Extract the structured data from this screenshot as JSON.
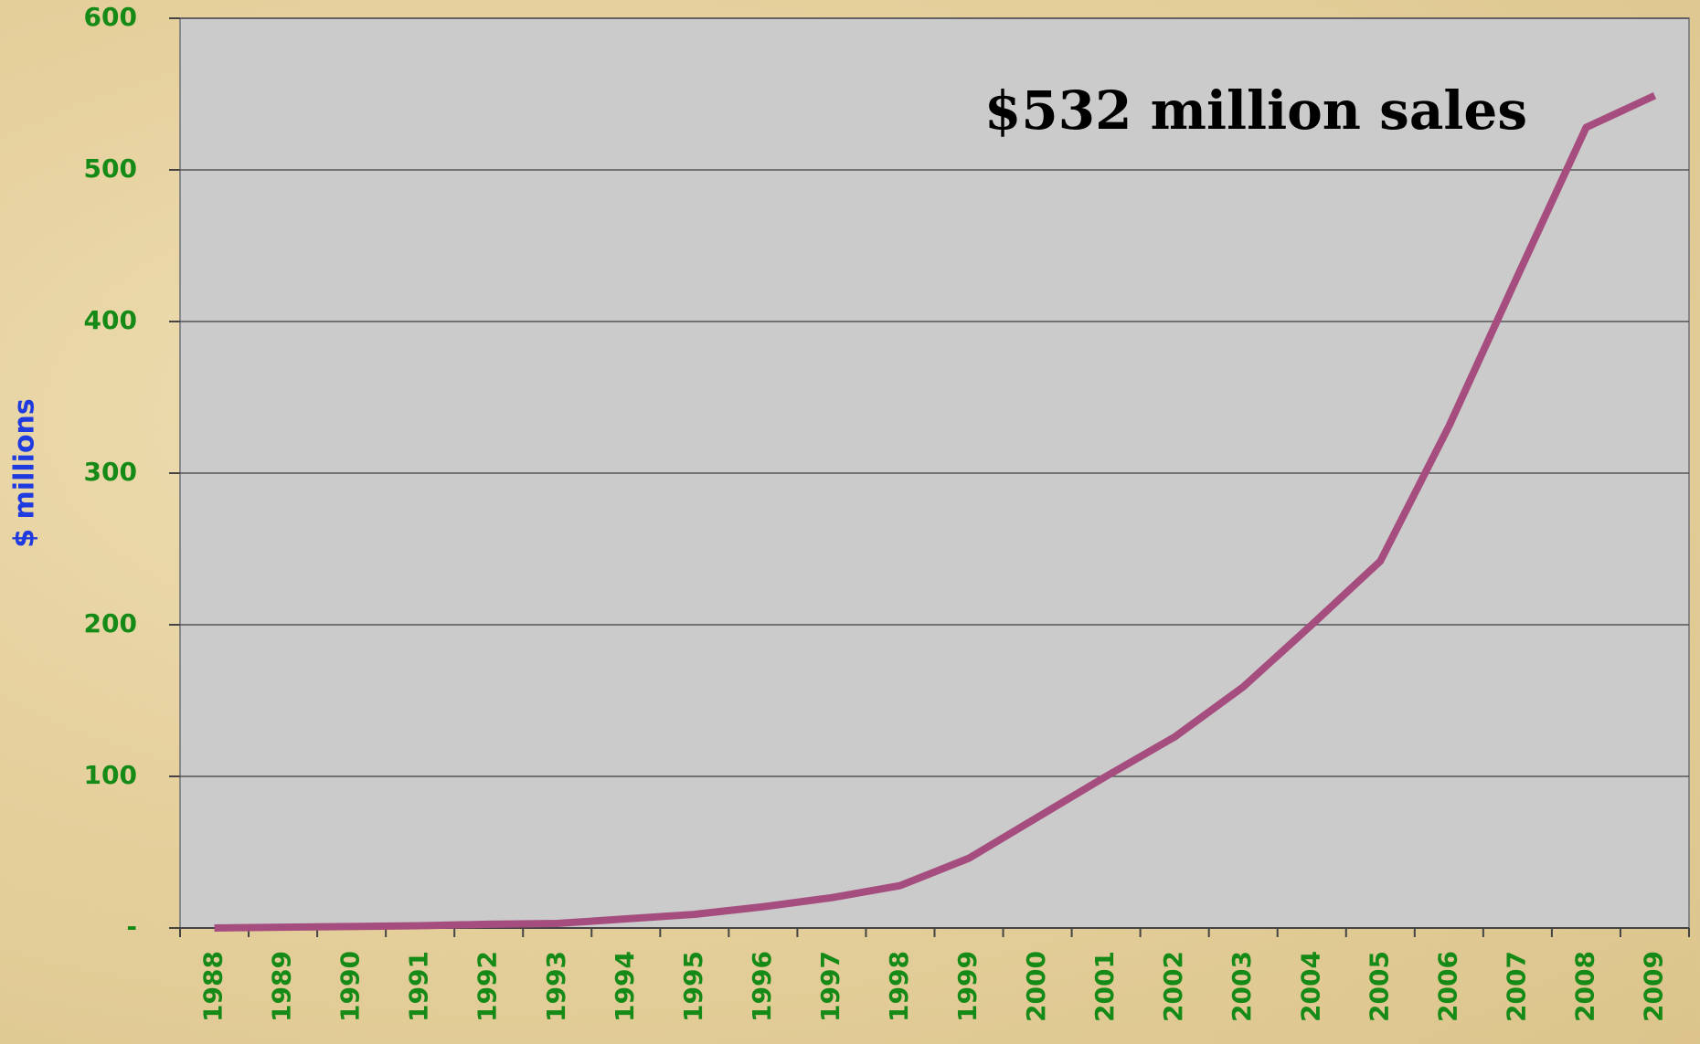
{
  "chart_data": {
    "type": "line",
    "annotation": "$532 million sales",
    "y_label": "$ millions",
    "categories": [
      "1988",
      "1989",
      "1990",
      "1991",
      "1992",
      "1993",
      "1994",
      "1995",
      "1996",
      "1997",
      "1998",
      "1999",
      "2000",
      "2001",
      "2002",
      "2003",
      "2004",
      "2005",
      "2006",
      "2007",
      "2008",
      "2009"
    ],
    "series": [
      {
        "color": "#a64d7f",
        "values": [
          0,
          0.5,
          1,
          1.5,
          2.5,
          3,
          6,
          9,
          14,
          20,
          28,
          46,
          73,
          100,
          126,
          159,
          200,
          242,
          331,
          430,
          528,
          549
        ]
      }
    ],
    "ylim": [
      0,
      600
    ],
    "yticks": [
      {
        "value": 0,
        "label": "-"
      },
      100,
      200,
      300,
      400,
      500,
      600
    ],
    "grid": true
  }
}
